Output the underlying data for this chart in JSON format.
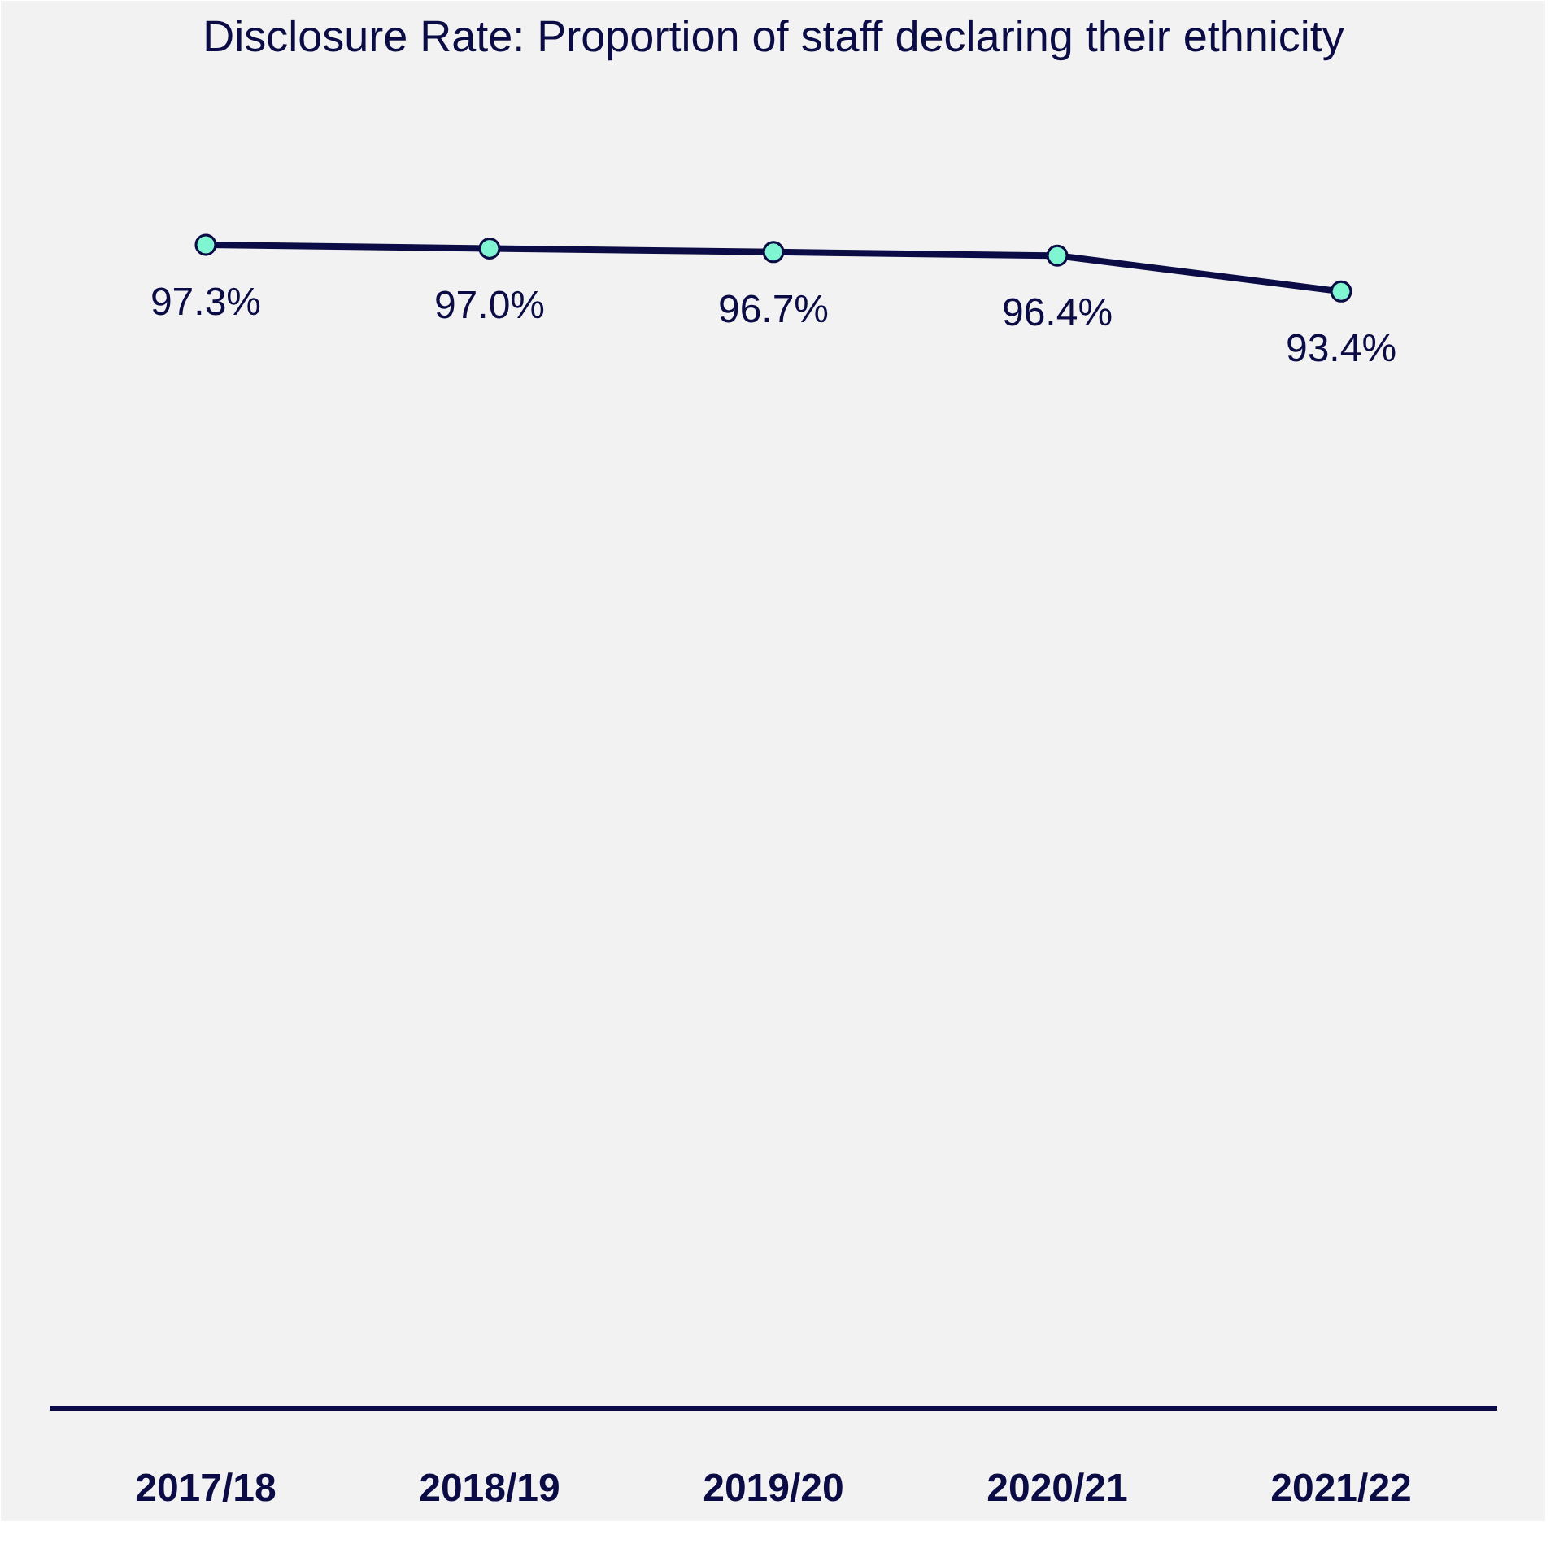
{
  "chart_data": {
    "type": "line",
    "title": "Disclosure Rate: Proportion of staff declaring their ethnicity",
    "categories": [
      "2017/18",
      "2018/19",
      "2019/20",
      "2020/21",
      "2021/22"
    ],
    "series": [
      {
        "color": "#0b0c45",
        "values": [
          97.3,
          97.0,
          96.7,
          96.4,
          93.4
        ],
        "value_labels": [
          "97.3%",
          "97.0%",
          "96.7%",
          "96.4%",
          "93.4%"
        ]
      }
    ],
    "ylim": [
      0,
      112
    ],
    "marker": "circle",
    "line_style": "solid",
    "grid": false
  }
}
